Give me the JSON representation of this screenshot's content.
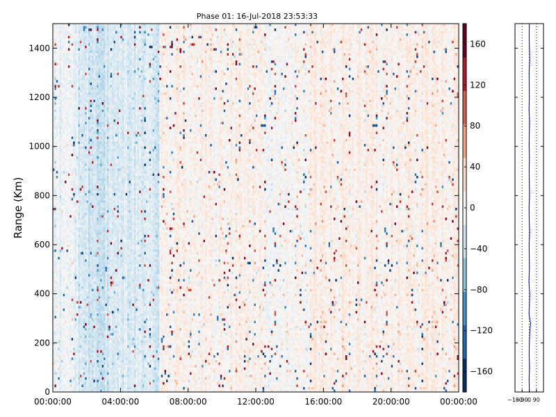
{
  "chart_data": [
    {
      "type": "heatmap",
      "title": "Phase 01: 16-Jul-2018 23:53:33",
      "ylabel": "Range (Km)",
      "xlabel": "",
      "x_range_hours": [
        0,
        24
      ],
      "x_ticks": [
        "00:00:00",
        "04:00:00",
        "08:00:00",
        "12:00:00",
        "16:00:00",
        "20:00:00",
        "00:00:00"
      ],
      "ylim": [
        0,
        1500
      ],
      "y_ticks": [
        "0",
        "200",
        "400",
        "600",
        "800",
        "1000",
        "1200",
        "1400"
      ],
      "grid": false,
      "colorbar": {
        "range": [
          -180,
          180
        ],
        "ticks": [
          "160",
          "120",
          "80",
          "40",
          "0",
          "−40",
          "−80",
          "−120",
          "−160"
        ],
        "colormap": [
          "#053061",
          "#2166ac",
          "#4393c3",
          "#92c5de",
          "#d1e5f0",
          "#f7f7f7",
          "#fddbc7",
          "#f4a582",
          "#d6604d",
          "#b2182b",
          "#67001f"
        ]
      },
      "time_segments": [
        {
          "start_hour": 0.0,
          "end_hour": 1.5,
          "mean_phase": -20
        },
        {
          "start_hour": 1.5,
          "end_hour": 4.0,
          "mean_phase": -55
        },
        {
          "start_hour": 4.0,
          "end_hour": 6.3,
          "mean_phase": -45
        },
        {
          "start_hour": 6.3,
          "end_hour": 9.5,
          "mean_phase": 15
        },
        {
          "start_hour": 9.5,
          "end_hour": 12.5,
          "mean_phase": 10
        },
        {
          "start_hour": 12.5,
          "end_hour": 15.0,
          "mean_phase": 5
        },
        {
          "start_hour": 15.0,
          "end_hour": 24.0,
          "mean_phase": 18
        }
      ]
    },
    {
      "type": "line",
      "title": "",
      "xlabel": "",
      "ylabel": "",
      "xlim": [
        -180,
        180
      ],
      "x_ticks": [
        "−180",
        "−90",
        "0",
        "90"
      ],
      "ylim": [
        0,
        1500
      ],
      "grid": true,
      "line_color": "#0000cc",
      "series": [
        {
          "range_km": [
            0,
            50,
            100,
            150,
            200,
            250,
            280,
            300,
            320,
            350,
            400,
            450,
            500,
            550,
            600,
            650,
            700,
            750,
            800,
            850,
            900,
            950,
            1000,
            1050,
            1100,
            1150,
            1200,
            1250,
            1300,
            1350,
            1400,
            1450,
            1500
          ],
          "phase_deg": [
            3,
            -2,
            4,
            -1,
            2,
            8,
            18,
            5,
            -3,
            2,
            6,
            -4,
            3,
            1,
            -2,
            5,
            0,
            -3,
            4,
            2,
            -1,
            3,
            -2,
            1,
            4,
            -3,
            2,
            0,
            -2,
            6,
            3,
            -1,
            2
          ]
        }
      ]
    }
  ]
}
